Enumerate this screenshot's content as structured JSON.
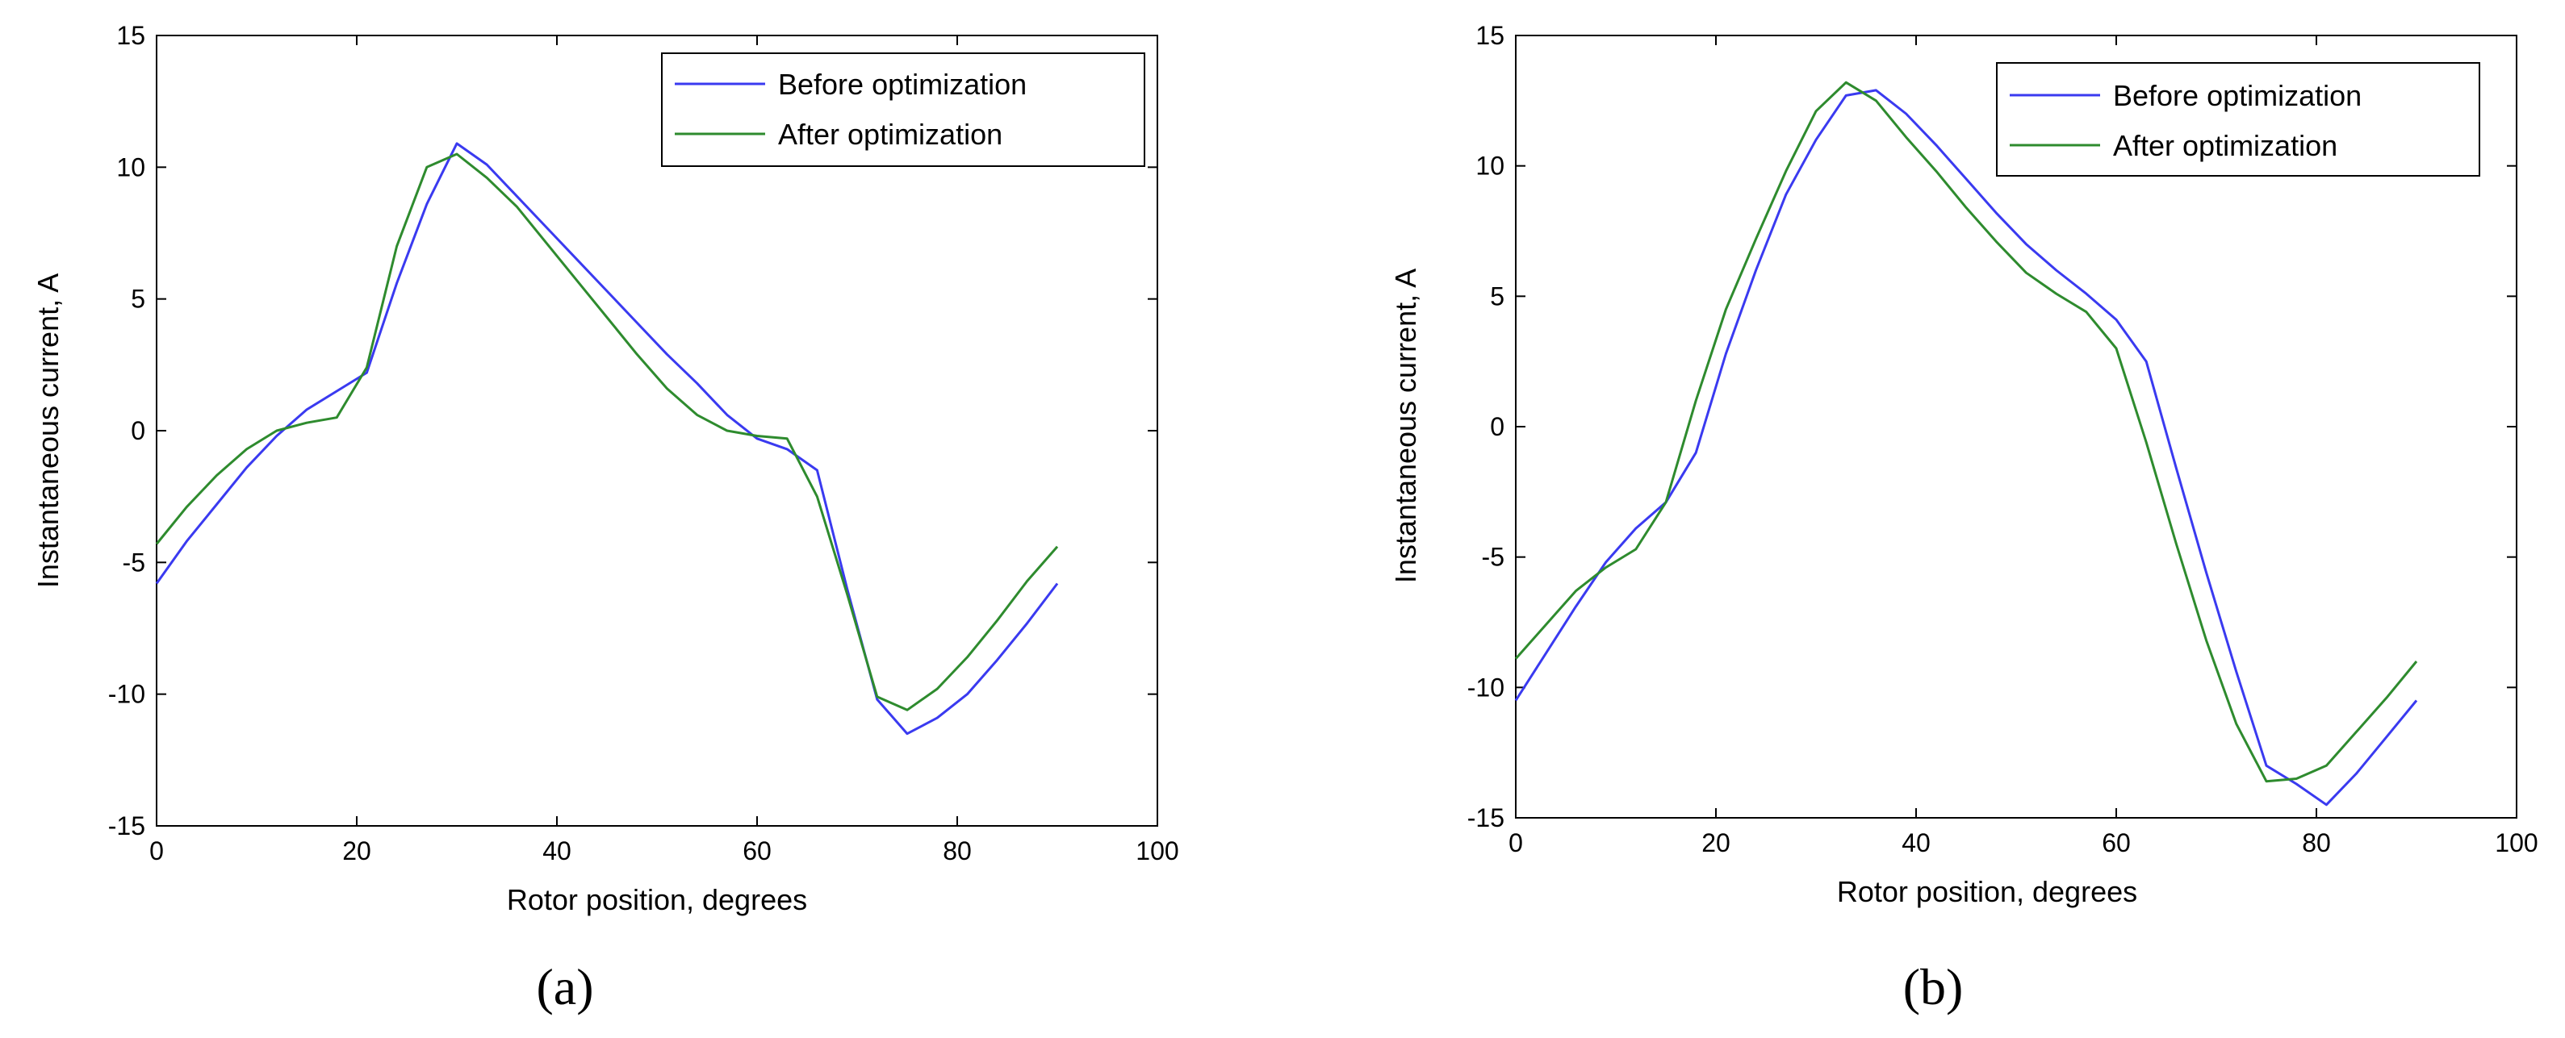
{
  "chart_data": [
    {
      "type": "line",
      "panel_label": "(a)",
      "xlabel": "Rotor position, degrees",
      "ylabel": "Instantaneous current, A",
      "xlim": [
        0,
        100
      ],
      "ylim": [
        -15,
        15
      ],
      "xticks": [
        0,
        20,
        40,
        60,
        80,
        100
      ],
      "yticks": [
        -15,
        -10,
        -5,
        0,
        5,
        10,
        15
      ],
      "grid": false,
      "legend_position": "top-right",
      "series": [
        {
          "name": "Before optimization",
          "color": "#3a3af0",
          "x": [
            0,
            3,
            6,
            9,
            12,
            15,
            18,
            21,
            24,
            27,
            30,
            33,
            36,
            39,
            42,
            45,
            48,
            51,
            54,
            57,
            60,
            63,
            66,
            69,
            72,
            75,
            78,
            81,
            84,
            87,
            90
          ],
          "y": [
            -5.8,
            -4.2,
            -2.8,
            -1.4,
            -0.2,
            0.8,
            1.5,
            2.2,
            5.6,
            8.6,
            10.9,
            10.1,
            8.9,
            7.7,
            6.5,
            5.3,
            4.1,
            2.9,
            1.8,
            0.6,
            -0.3,
            -0.7,
            -1.5,
            -6.0,
            -10.2,
            -11.5,
            -10.9,
            -10.0,
            -8.7,
            -7.3,
            -5.8
          ]
        },
        {
          "name": "After optimization",
          "color": "#2e8b2e",
          "x": [
            0,
            3,
            6,
            9,
            12,
            15,
            18,
            21,
            24,
            27,
            30,
            33,
            36,
            39,
            42,
            45,
            48,
            51,
            54,
            57,
            60,
            63,
            66,
            69,
            72,
            75,
            78,
            81,
            84,
            87,
            90
          ],
          "y": [
            -4.3,
            -2.9,
            -1.7,
            -0.7,
            0.0,
            0.3,
            0.5,
            2.4,
            7.0,
            10.0,
            10.5,
            9.6,
            8.5,
            7.1,
            5.7,
            4.3,
            2.9,
            1.6,
            0.6,
            0.0,
            -0.2,
            -0.3,
            -2.5,
            -6.2,
            -10.1,
            -10.6,
            -9.8,
            -8.6,
            -7.2,
            -5.7,
            -4.4
          ]
        }
      ]
    },
    {
      "type": "line",
      "panel_label": "(b)",
      "xlabel": "Rotor position, degrees",
      "ylabel": "Instantaneous current, A",
      "xlim": [
        0,
        100
      ],
      "ylim": [
        -15,
        15
      ],
      "xticks": [
        0,
        20,
        40,
        60,
        80,
        100
      ],
      "yticks": [
        -15,
        -10,
        -5,
        0,
        5,
        10,
        15
      ],
      "grid": false,
      "legend_position": "top-right",
      "series": [
        {
          "name": "Before optimization",
          "color": "#3a3af0",
          "x": [
            0,
            3,
            6,
            9,
            12,
            15,
            18,
            21,
            24,
            27,
            30,
            33,
            36,
            39,
            42,
            45,
            48,
            51,
            54,
            57,
            60,
            63,
            66,
            69,
            72,
            75,
            78,
            81,
            84,
            87,
            90
          ],
          "y": [
            -10.5,
            -8.7,
            -6.9,
            -5.2,
            -3.9,
            -2.9,
            -1.0,
            2.8,
            6.0,
            8.9,
            11.0,
            12.7,
            12.9,
            12.0,
            10.8,
            9.5,
            8.2,
            7.0,
            6.0,
            5.1,
            4.1,
            2.5,
            -1.6,
            -5.6,
            -9.4,
            -13.0,
            -13.7,
            -14.5,
            -13.3,
            -11.9,
            -10.5
          ]
        },
        {
          "name": "After optimization",
          "color": "#2e8b2e",
          "x": [
            0,
            3,
            6,
            9,
            12,
            15,
            18,
            21,
            24,
            27,
            30,
            33,
            36,
            39,
            42,
            45,
            48,
            51,
            54,
            57,
            60,
            63,
            66,
            69,
            72,
            75,
            78,
            81,
            84,
            87,
            90
          ],
          "y": [
            -8.9,
            -7.6,
            -6.3,
            -5.4,
            -4.7,
            -2.9,
            1.0,
            4.5,
            7.2,
            9.8,
            12.1,
            13.2,
            12.5,
            11.1,
            9.8,
            8.4,
            7.1,
            5.9,
            5.1,
            4.4,
            3.0,
            -0.6,
            -4.5,
            -8.2,
            -11.4,
            -13.6,
            -13.5,
            -13.0,
            -11.7,
            -10.4,
            -9.0
          ]
        }
      ]
    }
  ]
}
